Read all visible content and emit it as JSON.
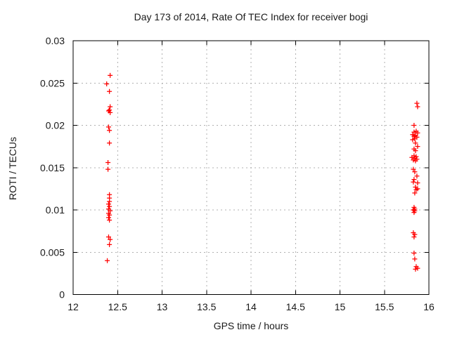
{
  "chart_data": {
    "type": "scatter",
    "title": "Day 173 of 2014, Rate Of TEC Index for receiver bogi",
    "xlabel": "GPS time / hours",
    "ylabel": "ROTI / TECUs",
    "xlim": [
      12,
      16
    ],
    "ylim": [
      0,
      0.03
    ],
    "xticks": [
      [
        12,
        "12"
      ],
      [
        12.5,
        "12.5"
      ],
      [
        13,
        "13"
      ],
      [
        13.5,
        "13.5"
      ],
      [
        14,
        "14"
      ],
      [
        14.5,
        "14.5"
      ],
      [
        15,
        "15"
      ],
      [
        15.5,
        "15.5"
      ],
      [
        16,
        "16"
      ]
    ],
    "yticks": [
      [
        0,
        "0"
      ],
      [
        0.005,
        "0.005"
      ],
      [
        0.01,
        "0.01"
      ],
      [
        0.015,
        "0.015"
      ],
      [
        0.02,
        "0.02"
      ],
      [
        0.025,
        "0.025"
      ],
      [
        0.03,
        "0.03"
      ]
    ],
    "grid": true,
    "legend_position": "none",
    "marker": "plus-icon",
    "colors": {
      "marker": "#ff0000",
      "grid": "#b0b0b0",
      "border": "#000000",
      "text": "#1a1a1a",
      "background": "#ffffff"
    },
    "series": [
      {
        "name": "ROTI",
        "points": [
          [
            12.416,
            0.0259
          ],
          [
            12.377,
            0.0249
          ],
          [
            12.408,
            0.024
          ],
          [
            12.416,
            0.0222
          ],
          [
            12.408,
            0.0218
          ],
          [
            12.399,
            0.0217
          ],
          [
            12.416,
            0.0215
          ],
          [
            12.399,
            0.0198
          ],
          [
            12.408,
            0.0194
          ],
          [
            12.408,
            0.0179
          ],
          [
            12.392,
            0.0156
          ],
          [
            12.392,
            0.0148
          ],
          [
            12.408,
            0.0118
          ],
          [
            12.408,
            0.0114
          ],
          [
            12.408,
            0.011
          ],
          [
            12.399,
            0.0107
          ],
          [
            12.408,
            0.0104
          ],
          [
            12.399,
            0.0101
          ],
          [
            12.416,
            0.0099
          ],
          [
            12.399,
            0.0096
          ],
          [
            12.408,
            0.0094
          ],
          [
            12.399,
            0.0091
          ],
          [
            12.408,
            0.0088
          ],
          [
            12.399,
            0.0068
          ],
          [
            12.416,
            0.0065
          ],
          [
            12.408,
            0.0059
          ],
          [
            12.384,
            0.004
          ],
          [
            15.865,
            0.0226
          ],
          [
            15.873,
            0.0222
          ],
          [
            15.833,
            0.02
          ],
          [
            15.857,
            0.0193
          ],
          [
            15.833,
            0.0192
          ],
          [
            15.873,
            0.0191
          ],
          [
            15.817,
            0.0189
          ],
          [
            15.849,
            0.0188
          ],
          [
            15.833,
            0.0187
          ],
          [
            15.865,
            0.0186
          ],
          [
            15.841,
            0.0184
          ],
          [
            15.817,
            0.0183
          ],
          [
            15.849,
            0.0179
          ],
          [
            15.873,
            0.0175
          ],
          [
            15.833,
            0.0172
          ],
          [
            15.849,
            0.017
          ],
          [
            15.833,
            0.0164
          ],
          [
            15.857,
            0.0163
          ],
          [
            15.809,
            0.0162
          ],
          [
            15.841,
            0.0161
          ],
          [
            15.865,
            0.016
          ],
          [
            15.825,
            0.0159
          ],
          [
            15.849,
            0.0158
          ],
          [
            15.825,
            0.0148
          ],
          [
            15.841,
            0.0145
          ],
          [
            15.865,
            0.014
          ],
          [
            15.833,
            0.0136
          ],
          [
            15.825,
            0.0133
          ],
          [
            15.873,
            0.0132
          ],
          [
            15.849,
            0.0127
          ],
          [
            15.873,
            0.0125
          ],
          [
            15.857,
            0.0124
          ],
          [
            15.841,
            0.012
          ],
          [
            15.833,
            0.0103
          ],
          [
            15.841,
            0.0101
          ],
          [
            15.825,
            0.01
          ],
          [
            15.841,
            0.0099
          ],
          [
            15.833,
            0.0097
          ],
          [
            15.825,
            0.0073
          ],
          [
            15.841,
            0.0071
          ],
          [
            15.833,
            0.0068
          ],
          [
            15.833,
            0.0049
          ],
          [
            15.841,
            0.0042
          ],
          [
            15.857,
            0.0033
          ],
          [
            15.873,
            0.0031
          ],
          [
            15.849,
            0.003
          ]
        ]
      }
    ]
  }
}
